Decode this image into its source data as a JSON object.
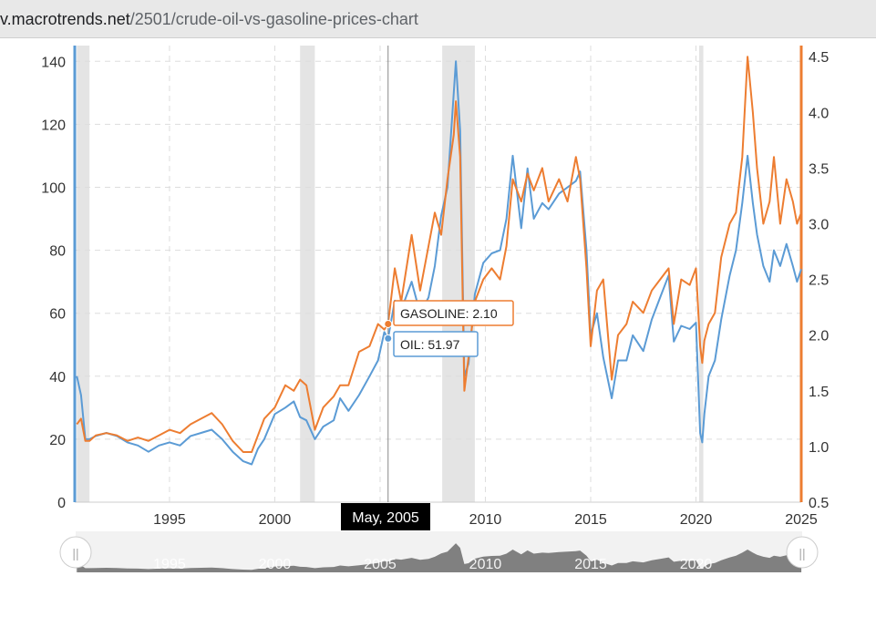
{
  "browser": {
    "url_host": "v.macrotrends.net",
    "url_path": "/2501/crude-oil-vs-gasoline-prices-chart"
  },
  "colors": {
    "oil": "#5b9bd5",
    "gasoline": "#ed7d31",
    "recession": "#e4e4e4",
    "navigator_area": "#808080"
  },
  "tooltip": {
    "date": "May, 2005",
    "gasoline": "GASOLINE: 2.10",
    "oil": "OIL: 51.97"
  },
  "navigator": {
    "tick_labels": [
      "1995",
      "2000",
      "2005",
      "2010",
      "2015",
      "2020"
    ]
  },
  "chart_data": {
    "type": "line",
    "x_unit": "year",
    "xlim": [
      1990.5,
      2025
    ],
    "x_ticks": [
      1995,
      2000,
      2005,
      2010,
      2015,
      2020,
      2025
    ],
    "x_tick_labels": [
      "1995",
      "2000",
      "2005",
      "2010",
      "2015",
      "2020",
      "2025"
    ],
    "y_left": {
      "lim": [
        0,
        145
      ],
      "ticks": [
        0,
        20,
        40,
        60,
        80,
        100,
        120,
        140
      ],
      "tick_labels": [
        "0",
        "20",
        "40",
        "60",
        "80",
        "100",
        "120",
        "140"
      ]
    },
    "y_right": {
      "lim": [
        0.5,
        4.6
      ],
      "ticks": [
        0.5,
        1.0,
        1.5,
        2.0,
        2.5,
        3.0,
        3.5,
        4.0,
        4.5
      ],
      "tick_labels": [
        "0.5",
        "1.0",
        "1.5",
        "2.0",
        "2.5",
        "3.0",
        "3.5",
        "4.0",
        "4.5"
      ]
    },
    "grid": true,
    "recessions": [
      [
        1990.6,
        1991.2
      ],
      [
        2001.2,
        2001.9
      ],
      [
        2007.95,
        2009.5
      ],
      [
        2020.15,
        2020.35
      ]
    ],
    "series": [
      {
        "name": "OIL",
        "axis": "left",
        "color": "#5b9bd5",
        "x": [
          1990.6,
          1990.8,
          1991.0,
          1991.2,
          1991.5,
          1992.0,
          1992.5,
          1993.0,
          1993.5,
          1994.0,
          1994.5,
          1995.0,
          1995.5,
          1996.0,
          1996.5,
          1997.0,
          1997.5,
          1998.0,
          1998.5,
          1998.9,
          1999.2,
          1999.5,
          2000.0,
          2000.5,
          2000.9,
          2001.2,
          2001.5,
          2001.9,
          2002.3,
          2002.8,
          2003.1,
          2003.5,
          2004.0,
          2004.5,
          2004.9,
          2005.2,
          2005.38,
          2005.7,
          2006.0,
          2006.5,
          2006.9,
          2007.3,
          2007.6,
          2007.9,
          2008.2,
          2008.5,
          2008.6,
          2008.8,
          2009.0,
          2009.2,
          2009.5,
          2009.9,
          2010.3,
          2010.7,
          2011.0,
          2011.3,
          2011.7,
          2012.0,
          2012.3,
          2012.7,
          2013.0,
          2013.5,
          2013.9,
          2014.3,
          2014.5,
          2014.8,
          2015.0,
          2015.3,
          2015.6,
          2016.0,
          2016.3,
          2016.7,
          2017.0,
          2017.5,
          2017.9,
          2018.3,
          2018.7,
          2018.95,
          2019.3,
          2019.7,
          2020.0,
          2020.2,
          2020.3,
          2020.4,
          2020.6,
          2020.9,
          2021.2,
          2021.6,
          2021.9,
          2022.2,
          2022.45,
          2022.7,
          2022.9,
          2023.2,
          2023.5,
          2023.7,
          2024.0,
          2024.3,
          2024.6,
          2024.8,
          2025.0
        ],
        "values": [
          40,
          34,
          20,
          20,
          21,
          22,
          21,
          19,
          18,
          16,
          18,
          19,
          18,
          21,
          22,
          23,
          20,
          16,
          13,
          12,
          17,
          20,
          28,
          30,
          32,
          27,
          26,
          20,
          24,
          26,
          33,
          29,
          34,
          40,
          45,
          54,
          51.97,
          64,
          61,
          70,
          60,
          65,
          75,
          91,
          100,
          130,
          140,
          118,
          40,
          44,
          66,
          76,
          79,
          80,
          90,
          110,
          87,
          106,
          90,
          95,
          93,
          98,
          100,
          102,
          105,
          80,
          53,
          60,
          46,
          33,
          45,
          45,
          53,
          48,
          58,
          65,
          72,
          51,
          56,
          55,
          57,
          22,
          19,
          28,
          40,
          45,
          58,
          72,
          80,
          95,
          110,
          95,
          85,
          75,
          70,
          80,
          75,
          82,
          75,
          70,
          74
        ]
      },
      {
        "name": "GASOLINE",
        "axis": "right",
        "color": "#ed7d31",
        "x": [
          1990.6,
          1990.8,
          1991.0,
          1991.2,
          1991.5,
          1992.0,
          1992.5,
          1993.0,
          1993.5,
          1994.0,
          1994.5,
          1995.0,
          1995.5,
          1996.0,
          1996.5,
          1997.0,
          1997.5,
          1998.0,
          1998.5,
          1998.9,
          1999.2,
          1999.5,
          2000.0,
          2000.5,
          2000.9,
          2001.2,
          2001.5,
          2001.9,
          2002.3,
          2002.8,
          2003.1,
          2003.5,
          2004.0,
          2004.5,
          2004.9,
          2005.2,
          2005.38,
          2005.7,
          2006.0,
          2006.5,
          2006.9,
          2007.3,
          2007.6,
          2007.9,
          2008.2,
          2008.5,
          2008.6,
          2008.8,
          2009.0,
          2009.2,
          2009.5,
          2009.9,
          2010.3,
          2010.7,
          2011.0,
          2011.3,
          2011.7,
          2012.0,
          2012.3,
          2012.7,
          2013.0,
          2013.5,
          2013.9,
          2014.3,
          2014.5,
          2014.8,
          2015.0,
          2015.3,
          2015.6,
          2016.0,
          2016.3,
          2016.7,
          2017.0,
          2017.5,
          2017.9,
          2018.3,
          2018.7,
          2018.95,
          2019.3,
          2019.7,
          2020.0,
          2020.2,
          2020.3,
          2020.4,
          2020.6,
          2020.9,
          2021.2,
          2021.6,
          2021.9,
          2022.2,
          2022.45,
          2022.7,
          2022.9,
          2023.2,
          2023.5,
          2023.7,
          2024.0,
          2024.3,
          2024.6,
          2024.8,
          2025.0
        ],
        "values": [
          1.2,
          1.25,
          1.05,
          1.05,
          1.1,
          1.12,
          1.1,
          1.05,
          1.08,
          1.05,
          1.1,
          1.15,
          1.12,
          1.2,
          1.25,
          1.3,
          1.2,
          1.05,
          0.95,
          0.95,
          1.1,
          1.25,
          1.35,
          1.55,
          1.5,
          1.6,
          1.55,
          1.15,
          1.35,
          1.45,
          1.55,
          1.55,
          1.85,
          1.9,
          2.1,
          2.05,
          2.1,
          2.6,
          2.3,
          2.9,
          2.4,
          2.8,
          3.1,
          2.9,
          3.4,
          3.8,
          4.1,
          3.6,
          1.5,
          1.8,
          2.3,
          2.5,
          2.6,
          2.5,
          2.8,
          3.4,
          3.2,
          3.45,
          3.3,
          3.5,
          3.2,
          3.4,
          3.2,
          3.6,
          3.4,
          2.6,
          1.9,
          2.4,
          2.5,
          1.6,
          2.0,
          2.1,
          2.3,
          2.2,
          2.4,
          2.5,
          2.6,
          2.1,
          2.5,
          2.45,
          2.6,
          1.9,
          1.75,
          1.95,
          2.1,
          2.2,
          2.7,
          3.0,
          3.1,
          3.6,
          4.5,
          4.0,
          3.5,
          3.0,
          3.2,
          3.6,
          3.0,
          3.4,
          3.2,
          3.0,
          3.1
        ]
      }
    ]
  }
}
